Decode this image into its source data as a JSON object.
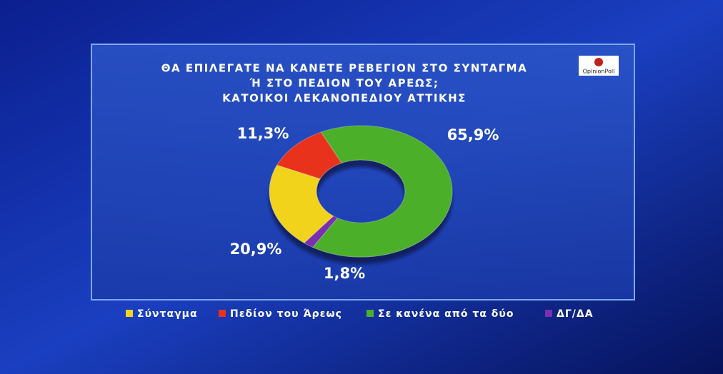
{
  "chart_data": {
    "type": "donut",
    "title": [
      "ΘΑ ΕΠΙΛΕΓΑΤΕ ΝΑ ΚΑΝΕΤΕ ΡΕΒΕΓΙΟΝ ΣΤΟ ΣΥΝΤΑΓΜΑ",
      "Ή ΣΤΟ ΠΕΔΙΟΝ ΤΟΥ ΑΡΕΩΣ;",
      "ΚΑΤΟΙΚΟΙ ΛΕΚΑΝΟΠΕΔΙΟΥ ΑΤΤΙΚΗΣ"
    ],
    "logo": "OpinionPoll",
    "categories": [
      "Σύνταγμα",
      "Πεδίον του Άρεως",
      "Σε κανένα από τα δύο",
      "ΔΓ/ΔΑ"
    ],
    "values": [
      20.9,
      11.3,
      65.9,
      1.8
    ],
    "value_labels": [
      "20,9%",
      "11,3%",
      "65,9%",
      "1,8%"
    ],
    "colors": [
      "#f2d31f",
      "#e8321e",
      "#4caf2b",
      "#7a2fb0"
    ],
    "legend": "bottom"
  }
}
